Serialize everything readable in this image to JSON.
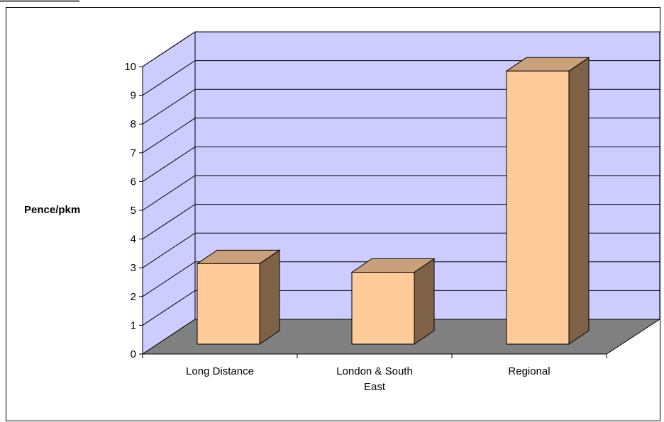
{
  "chart_data": {
    "type": "bar",
    "style": "3d-column",
    "title": "",
    "xlabel": "",
    "ylabel": "Pence/pkm",
    "ylim": [
      0,
      10
    ],
    "yticks": [
      "0",
      "1",
      "2",
      "3",
      "4",
      "5",
      "6",
      "7",
      "8",
      "9",
      "10"
    ],
    "categories": [
      [
        "Long Distance"
      ],
      [
        "London & South",
        "East"
      ],
      [
        "Regional"
      ]
    ],
    "values": [
      2.8,
      2.5,
      9.5
    ],
    "grid": true,
    "legend": "none"
  },
  "colors": {
    "wall": "#ccccff",
    "floor": "#808080",
    "bar_front": "#ffcc99",
    "bar_top": "#c8a07a",
    "bar_side": "#7f6148",
    "gridline": "#000000",
    "border": "#000000"
  }
}
